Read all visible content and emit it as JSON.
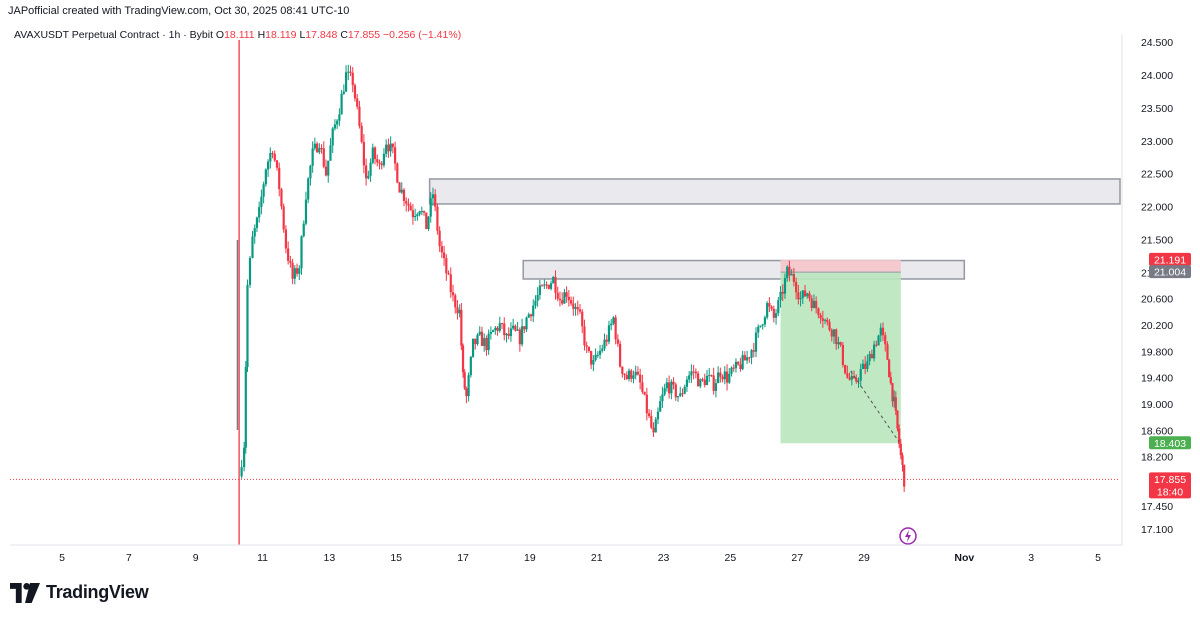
{
  "header": {
    "attribution": "JAPofficial created with TradingView.com, Oct 30, 2025 08:41 UTC-10"
  },
  "legend": {
    "symbol": "AVAXUSDT Perpetual Contract · 1h · Bybit",
    "open_label": "O",
    "open": "18.111",
    "high_label": "H",
    "high": "18.119",
    "low_label": "L",
    "low": "17.848",
    "close_label": "C",
    "close": "17.855",
    "change": "−0.256 (−1.41%)"
  },
  "brand": {
    "name": "TradingView",
    "logo": "tradingview-logo"
  },
  "colors": {
    "up": "#089981",
    "down": "#f23645",
    "zone_fill": "#e9e9ee",
    "zone_stroke": "#9598a1",
    "profit_fill": "#b9e6bd",
    "loss_fill": "#f5c6cb",
    "axis_text": "#131722"
  },
  "chart_data": {
    "type": "candlestick",
    "y_ticks": [
      "24.500",
      "24.000",
      "23.500",
      "23.000",
      "22.500",
      "22.000",
      "21.500",
      "21.000",
      "20.600",
      "20.200",
      "19.800",
      "19.400",
      "19.000",
      "18.600",
      "18.200",
      "17.450",
      "17.100"
    ],
    "x_ticks": [
      "5",
      "7",
      "9",
      "11",
      "13",
      "15",
      "17",
      "19",
      "21",
      "23",
      "25",
      "27",
      "29",
      "Nov",
      "3",
      "5"
    ],
    "price_labels": [
      {
        "text": "21.191",
        "color": "#f23645",
        "price": 21.191
      },
      {
        "text": "21.004",
        "color": "#787b86",
        "price": 21.004
      },
      {
        "text": "18.403",
        "color": "#4caf50",
        "price": 18.403
      },
      {
        "text": "17.855",
        "text2": "18:40",
        "color": "#f23645",
        "price": 17.855
      }
    ],
    "last_price": 17.855,
    "zones": [
      {
        "name": "resistance-zone-upper",
        "from_day": 16,
        "to_day": 40,
        "low": 22.04,
        "high": 22.42
      },
      {
        "name": "resistance-zone-lower",
        "from_day": 18.8,
        "to_day": 32.0,
        "low": 20.9,
        "high": 21.18
      }
    ],
    "short_position": {
      "from_day": 26.5,
      "to_day": 30.1,
      "entry": 21.004,
      "stop": 21.191,
      "target": 18.403
    },
    "price_path": [
      [
        10.3,
        17.9
      ],
      [
        10.45,
        18.4
      ],
      [
        10.55,
        20.8
      ],
      [
        10.7,
        21.5
      ],
      [
        10.9,
        21.9
      ],
      [
        11.1,
        22.6
      ],
      [
        11.3,
        22.9
      ],
      [
        11.5,
        22.3
      ],
      [
        11.7,
        21.4
      ],
      [
        11.9,
        20.9
      ],
      [
        12.1,
        21.1
      ],
      [
        12.3,
        22.2
      ],
      [
        12.5,
        22.8
      ],
      [
        12.7,
        23.0
      ],
      [
        12.9,
        22.5
      ],
      [
        13.1,
        23.1
      ],
      [
        13.3,
        23.5
      ],
      [
        13.5,
        24.0
      ],
      [
        13.7,
        23.9
      ],
      [
        13.9,
        23.2
      ],
      [
        14.1,
        22.4
      ],
      [
        14.3,
        22.8
      ],
      [
        14.5,
        22.6
      ],
      [
        14.7,
        23.0
      ],
      [
        14.9,
        22.8
      ],
      [
        15.1,
        22.3
      ],
      [
        15.3,
        22.1
      ],
      [
        15.5,
        21.9
      ],
      [
        15.7,
        22.0
      ],
      [
        15.9,
        21.7
      ],
      [
        16.1,
        22.2
      ],
      [
        16.3,
        21.4
      ],
      [
        16.5,
        21.0
      ],
      [
        16.7,
        20.6
      ],
      [
        16.9,
        20.4
      ],
      [
        17.0,
        19.4
      ],
      [
        17.1,
        19.1
      ],
      [
        17.3,
        19.9
      ],
      [
        17.5,
        20.0
      ],
      [
        17.7,
        19.9
      ],
      [
        17.9,
        20.1
      ],
      [
        18.1,
        20.2
      ],
      [
        18.3,
        20.0
      ],
      [
        18.5,
        20.1
      ],
      [
        18.7,
        20.0
      ],
      [
        18.9,
        20.3
      ],
      [
        19.1,
        20.5
      ],
      [
        19.3,
        20.7
      ],
      [
        19.5,
        20.8
      ],
      [
        19.7,
        20.9
      ],
      [
        19.9,
        20.6
      ],
      [
        20.1,
        20.7
      ],
      [
        20.3,
        20.5
      ],
      [
        20.5,
        20.3
      ],
      [
        20.7,
        19.8
      ],
      [
        20.9,
        19.6
      ],
      [
        21.1,
        19.8
      ],
      [
        21.3,
        20.0
      ],
      [
        21.5,
        20.3
      ],
      [
        21.7,
        19.6
      ],
      [
        21.9,
        19.4
      ],
      [
        22.1,
        19.5
      ],
      [
        22.3,
        19.3
      ],
      [
        22.5,
        18.9
      ],
      [
        22.7,
        18.5
      ],
      [
        22.9,
        19.0
      ],
      [
        23.1,
        19.3
      ],
      [
        23.3,
        19.2
      ],
      [
        23.5,
        19.1
      ],
      [
        23.7,
        19.4
      ],
      [
        23.9,
        19.5
      ],
      [
        24.1,
        19.3
      ],
      [
        24.3,
        19.4
      ],
      [
        24.5,
        19.3
      ],
      [
        24.7,
        19.5
      ],
      [
        24.9,
        19.4
      ],
      [
        25.1,
        19.5
      ],
      [
        25.3,
        19.6
      ],
      [
        25.5,
        19.7
      ],
      [
        25.7,
        19.9
      ],
      [
        25.9,
        20.2
      ],
      [
        26.1,
        20.5
      ],
      [
        26.3,
        20.3
      ],
      [
        26.5,
        20.6
      ],
      [
        26.7,
        21.0
      ],
      [
        26.9,
        20.9
      ],
      [
        27.1,
        20.6
      ],
      [
        27.3,
        20.7
      ],
      [
        27.5,
        20.5
      ],
      [
        27.7,
        20.4
      ],
      [
        27.9,
        20.2
      ],
      [
        28.1,
        20.1
      ],
      [
        28.3,
        19.8
      ],
      [
        28.5,
        19.4
      ],
      [
        28.7,
        19.3
      ],
      [
        28.9,
        19.5
      ],
      [
        29.1,
        19.6
      ],
      [
        29.3,
        19.9
      ],
      [
        29.5,
        20.1
      ],
      [
        29.7,
        19.7
      ],
      [
        29.8,
        19.3
      ],
      [
        29.9,
        19.0
      ],
      [
        30.0,
        18.6
      ],
      [
        30.1,
        18.2
      ],
      [
        30.2,
        17.85
      ]
    ]
  }
}
